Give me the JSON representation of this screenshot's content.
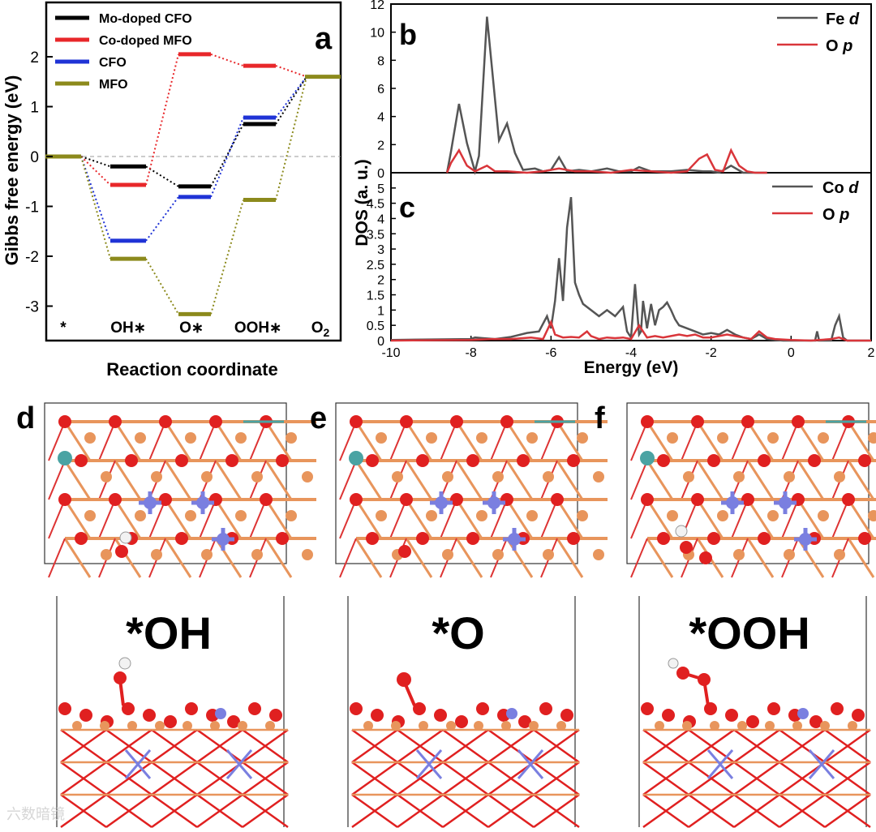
{
  "colors": {
    "mo_cfo": "#000000",
    "co_mfo": "#e8272a",
    "cfo": "#1f33d6",
    "mfo": "#8c8a1c",
    "dos_gray": "#555555",
    "dos_red": "#d9353a",
    "o_atom": "#e02020",
    "fe_atom": "#e8955c",
    "mo_atom": "#4aa3a3",
    "co_atom": "#7a7fe0",
    "h_atom": "#f2f2f2"
  },
  "panels": {
    "a": "a",
    "b": "b",
    "c": "c",
    "d": "d",
    "e": "e",
    "f": "f"
  },
  "structures": {
    "oh_label": "*OH",
    "o_label": "*O",
    "ooh_label": "*OOH"
  },
  "watermark": "六数暗镜",
  "chart_data": [
    {
      "id": "a",
      "type": "line",
      "title": "",
      "xlabel": "Reaction coordinate",
      "ylabel": "Gibbs free energy (eV)",
      "ylim": [
        -3.5,
        3.0
      ],
      "yticks": [
        "-3",
        "-2",
        "-1",
        "0",
        "1",
        "2"
      ],
      "categories": [
        "*",
        "OH*",
        "O*",
        "OOH*",
        "O2"
      ],
      "category_display": [
        "*",
        "OH",
        "O",
        "OOH",
        "O"
      ],
      "series": [
        {
          "name": "Mo-doped CFO",
          "color_key": "mo_cfo",
          "values": [
            0,
            -0.2,
            -0.6,
            0.65,
            1.6
          ]
        },
        {
          "name": "Co-doped MFO",
          "color_key": "co_mfo",
          "values": [
            0,
            -0.57,
            2.05,
            1.82,
            1.6
          ]
        },
        {
          "name": "CFO",
          "color_key": "cfo",
          "values": [
            0,
            -1.69,
            -0.81,
            0.78,
            1.6
          ]
        },
        {
          "name": "MFO",
          "color_key": "mfo",
          "values": [
            0,
            -2.05,
            -3.16,
            -0.87,
            1.6
          ]
        }
      ],
      "reference_line": 0
    },
    {
      "id": "b",
      "type": "line",
      "xlabel": "",
      "ylabel": "",
      "xlim": [
        -10,
        2
      ],
      "ylim": [
        0,
        12
      ],
      "yticks": [
        "0",
        "2",
        "4",
        "6",
        "8",
        "10",
        "12"
      ],
      "series": [
        {
          "name": "Fe",
          "orbital": "d",
          "color_key": "dos_gray",
          "x": [
            -8.6,
            -8.5,
            -8.3,
            -8.1,
            -7.9,
            -7.8,
            -7.6,
            -7.3,
            -7.1,
            -6.9,
            -6.7,
            -6.4,
            -6.2,
            -6.0,
            -5.8,
            -5.6,
            -5.3,
            -5.0,
            -4.6,
            -4.3,
            -4.0,
            -3.8,
            -3.5,
            -3.0,
            -2.6,
            -2.2,
            -2.0,
            -1.8,
            -1.5,
            -1.2,
            -1.0,
            -0.6
          ],
          "y": [
            0,
            1.5,
            4.9,
            2.1,
            0.1,
            1.2,
            11.1,
            2.3,
            3.5,
            1.4,
            0.2,
            0.3,
            0.1,
            0.2,
            1.1,
            0.1,
            0.2,
            0.1,
            0.3,
            0.1,
            0.1,
            0.4,
            0.1,
            0.1,
            0.2,
            0.1,
            0.1,
            0.0,
            0.5,
            0.0,
            0.0,
            0.0
          ]
        },
        {
          "name": "O",
          "orbital": "p",
          "color_key": "dos_red",
          "x": [
            -8.6,
            -8.5,
            -8.3,
            -8.1,
            -7.9,
            -7.6,
            -7.4,
            -7.1,
            -6.6,
            -6.2,
            -5.8,
            -5.4,
            -5.0,
            -4.5,
            -4.0,
            -3.5,
            -3.0,
            -2.6,
            -2.3,
            -2.1,
            -1.9,
            -1.7,
            -1.5,
            -1.3,
            -1.1,
            -0.9,
            -0.6
          ],
          "y": [
            0,
            0.7,
            1.6,
            0.5,
            0.1,
            0.5,
            0.1,
            0.1,
            0.0,
            0.1,
            0.3,
            0.1,
            0.1,
            0.0,
            0.2,
            0.1,
            0.0,
            0.1,
            1.0,
            1.3,
            0.2,
            0.1,
            1.6,
            0.5,
            0.1,
            0.0,
            0.0
          ]
        }
      ]
    },
    {
      "id": "c",
      "type": "line",
      "xlabel": "Energy (eV)",
      "ylabel": "DOS (a. u.)",
      "xlim": [
        -10,
        2
      ],
      "ylim": [
        0,
        5.5
      ],
      "xticks": [
        "-10",
        "-8",
        "-6",
        "-4",
        "-2",
        "0",
        "2"
      ],
      "yticks": [
        "0",
        "0.5",
        "1",
        "1.5",
        "2",
        "2.5",
        "3",
        "3.5",
        "4",
        "4.5",
        "5"
      ],
      "series": [
        {
          "name": "Co",
          "orbital": "d",
          "color_key": "dos_gray",
          "x": [
            -10,
            -8.0,
            -7.9,
            -7.7,
            -7.4,
            -7.0,
            -6.6,
            -6.3,
            -6.1,
            -6.0,
            -5.9,
            -5.8,
            -5.7,
            -5.6,
            -5.5,
            -5.4,
            -5.3,
            -5.2,
            -5.0,
            -4.8,
            -4.6,
            -4.4,
            -4.2,
            -4.1,
            -4.0,
            -3.9,
            -3.8,
            -3.75,
            -3.7,
            -3.6,
            -3.5,
            -3.4,
            -3.3,
            -3.2,
            -3.1,
            -3.0,
            -2.9,
            -2.8,
            -2.6,
            -2.4,
            -2.2,
            -2.0,
            -1.8,
            -1.6,
            -1.4,
            -1.2,
            -1.0,
            -0.8,
            -0.6,
            -0.4,
            -0.2,
            0.0,
            0.2,
            0.4,
            0.6,
            0.65,
            0.7,
            0.8,
            1.0,
            1.1,
            1.2,
            1.3,
            1.4,
            2.0
          ],
          "y": [
            0.02,
            0.05,
            0.1,
            0.08,
            0.05,
            0.12,
            0.25,
            0.3,
            0.8,
            0.4,
            1.3,
            2.7,
            1.3,
            3.7,
            4.7,
            1.9,
            1.5,
            1.2,
            1.0,
            0.8,
            1.0,
            0.8,
            1.1,
            0.3,
            0.1,
            1.85,
            0.2,
            0.3,
            1.3,
            0.4,
            1.2,
            0.5,
            1.0,
            1.1,
            1.25,
            1.0,
            0.7,
            0.5,
            0.4,
            0.3,
            0.2,
            0.25,
            0.2,
            0.35,
            0.2,
            0.1,
            0.05,
            0.2,
            0.05,
            0.02,
            0.0,
            0.0,
            0.0,
            0.0,
            0.0,
            0.3,
            0.0,
            0.0,
            0.0,
            0.5,
            0.8,
            0.1,
            0.0,
            0.0
          ]
        },
        {
          "name": "O",
          "orbital": "p",
          "color_key": "dos_red",
          "x": [
            -10,
            -8.0,
            -7.5,
            -7.0,
            -6.5,
            -6.2,
            -6.0,
            -5.9,
            -5.8,
            -5.7,
            -5.5,
            -5.3,
            -5.1,
            -5.0,
            -4.8,
            -4.6,
            -4.4,
            -4.2,
            -4.0,
            -3.8,
            -3.6,
            -3.4,
            -3.2,
            -3.0,
            -2.8,
            -2.6,
            -2.4,
            -2.2,
            -2.0,
            -1.8,
            -1.6,
            -1.4,
            -1.2,
            -1.0,
            -0.8,
            -0.6,
            -0.4,
            0.0,
            0.5,
            1.0,
            1.2,
            1.4,
            2.0
          ],
          "y": [
            0.0,
            0.02,
            0.05,
            0.05,
            0.1,
            0.05,
            0.6,
            0.2,
            0.15,
            0.1,
            0.12,
            0.1,
            0.3,
            0.15,
            0.05,
            0.1,
            0.08,
            0.1,
            0.05,
            0.5,
            0.1,
            0.15,
            0.1,
            0.15,
            0.2,
            0.15,
            0.2,
            0.1,
            0.1,
            0.15,
            0.2,
            0.15,
            0.1,
            0.05,
            0.3,
            0.1,
            0.05,
            0.02,
            0.0,
            0.05,
            0.1,
            0.0,
            0.0
          ]
        }
      ]
    }
  ]
}
